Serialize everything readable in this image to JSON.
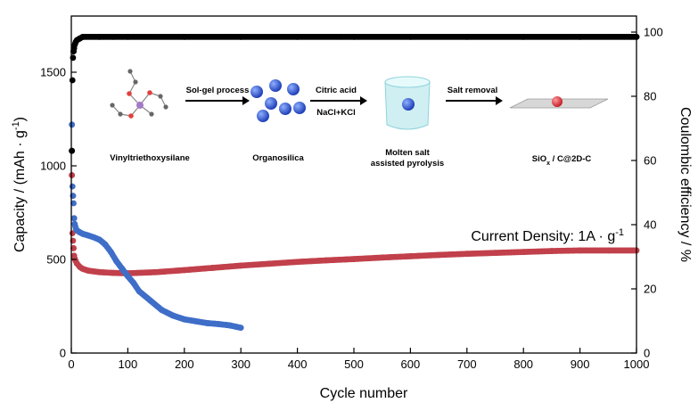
{
  "chart_data": {
    "type": "scatter",
    "xlabel": "Cycle number",
    "ylabel_left": {
      "prefix": "Capacity / (mAh · g",
      "sup": "-1",
      "suffix": ")"
    },
    "ylabel_right": "Coulombic efficiency / %",
    "xlim": [
      0,
      1000
    ],
    "ylim_left": [
      0,
      1800
    ],
    "ylim_right": [
      0,
      105
    ],
    "x_ticks": [
      0,
      100,
      200,
      300,
      400,
      500,
      600,
      700,
      800,
      900,
      1000
    ],
    "y_ticks_left": [
      0,
      500,
      1000,
      1500
    ],
    "y_ticks_right": [
      0,
      20,
      40,
      60,
      80,
      100
    ],
    "annotation": {
      "text": "Current Density: 1A · g",
      "sup": "-1"
    },
    "series": [
      {
        "axis": "right",
        "color": "#000000",
        "x": [
          1,
          2,
          3,
          4,
          5,
          6,
          8,
          10,
          15,
          20,
          50,
          100,
          200,
          300,
          400,
          500,
          600,
          700,
          800,
          900,
          1000
        ],
        "y": [
          63,
          85,
          92,
          94,
          95,
          96,
          97,
          97.5,
          98,
          98.5,
          98.5,
          98.5,
          98.5,
          98.5,
          98.5,
          98.5,
          98.5,
          98.5,
          98.5,
          98.5,
          98.5
        ]
      },
      {
        "axis": "left",
        "color": "#c1404b",
        "x": [
          1,
          2,
          3,
          4,
          5,
          6,
          8,
          10,
          15,
          20,
          30,
          50,
          75,
          100,
          150,
          200,
          250,
          300,
          350,
          400,
          450,
          500,
          550,
          600,
          650,
          700,
          750,
          800,
          850,
          900,
          950,
          1000
        ],
        "y": [
          950,
          640,
          600,
          560,
          520,
          505,
          490,
          478,
          460,
          450,
          440,
          432,
          428,
          426,
          432,
          443,
          455,
          467,
          477,
          487,
          495,
          502,
          510,
          517,
          524,
          530,
          535,
          540,
          545,
          548,
          548,
          548
        ]
      },
      {
        "axis": "left",
        "color": "#3f6ec8",
        "x": [
          1,
          2,
          3,
          4,
          5,
          6,
          8,
          10,
          15,
          20,
          30,
          40,
          50,
          60,
          70,
          80,
          90,
          100,
          110,
          120,
          140,
          160,
          180,
          200,
          220,
          240,
          260,
          280,
          300
        ],
        "y": [
          1220,
          890,
          840,
          800,
          720,
          690,
          665,
          655,
          645,
          637,
          628,
          618,
          605,
          580,
          540,
          490,
          450,
          410,
          375,
          330,
          280,
          230,
          200,
          180,
          170,
          160,
          155,
          148,
          135
        ]
      }
    ],
    "schematic": {
      "labels": [
        "Vinyltriethoxysilane",
        "Organosilica",
        "Molten salt",
        "assisted pyrolysis",
        "SiO",
        "x",
        " / C@2D-C"
      ],
      "arrows": [
        "Sol-gel process",
        "Citric acid",
        "NaCl+KCl",
        "Salt removal"
      ]
    }
  }
}
